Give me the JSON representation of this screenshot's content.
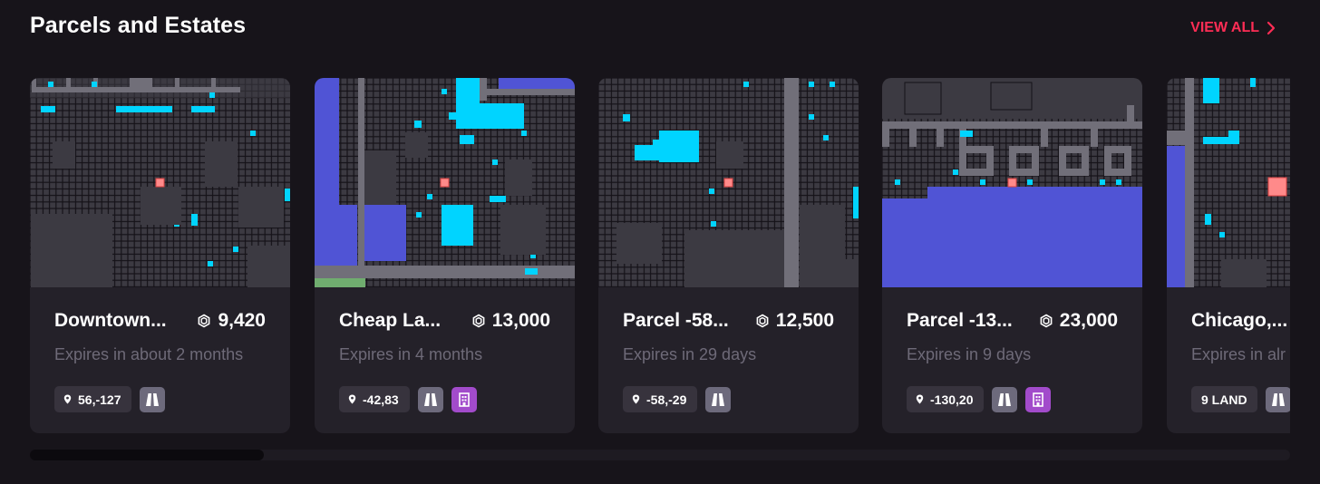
{
  "header": {
    "title": "Parcels and Estates",
    "view_all": "VIEW ALL"
  },
  "colors": {
    "accent": "#ff2d55",
    "card_bg": "#242129",
    "map_land": "#3c3a42",
    "map_road": "#716f79",
    "map_owned": "#00d4ff",
    "map_district": "#5054d5",
    "map_plaza": "#70ad6f",
    "map_selected": "#ff8a8a"
  },
  "cards": [
    {
      "name": "Downtown...",
      "price": "9,420",
      "currency_icon": "mana-icon",
      "expiry": "Expires in about 2 months",
      "coords": "56,-127",
      "badges": [
        "road-icon"
      ]
    },
    {
      "name": "Cheap La...",
      "price": "13,000",
      "currency_icon": "mana-icon",
      "expiry": "Expires in 4 months",
      "coords": "-42,83",
      "badges": [
        "road-icon",
        "district-icon"
      ]
    },
    {
      "name": "Parcel -58...",
      "price": "12,500",
      "currency_icon": "mana-icon",
      "expiry": "Expires in 29 days",
      "coords": "-58,-29",
      "badges": [
        "road-icon"
      ]
    },
    {
      "name": "Parcel -13...",
      "price": "23,000",
      "currency_icon": "mana-icon",
      "expiry": "Expires in 9 days",
      "coords": "-130,20",
      "badges": [
        "road-icon",
        "district-icon"
      ]
    },
    {
      "name": "Chicago,...",
      "price": "",
      "currency_icon": "mana-icon",
      "expiry": "Expires in alr",
      "land_count": "9 LAND",
      "badges": [
        "road-icon"
      ]
    }
  ]
}
